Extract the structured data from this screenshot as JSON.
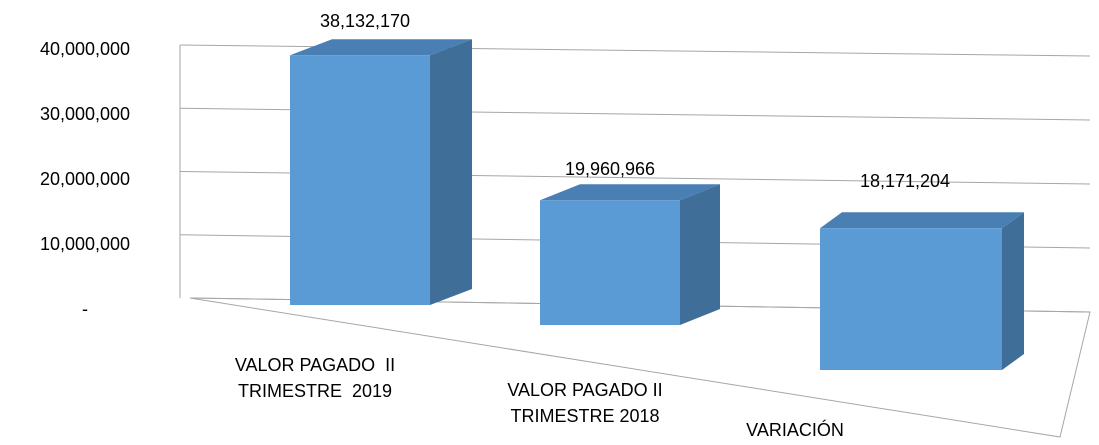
{
  "chart_data": {
    "type": "bar",
    "categories": [
      "VALOR PAGADO  II TRIMESTRE  2019",
      "VALOR PAGADO II TRIMESTRE 2018",
      "VARIACIÓN"
    ],
    "values": [
      38132170,
      19960966,
      18171204
    ],
    "value_labels": [
      "38,132,170",
      "19,960,966",
      "18,171,204"
    ],
    "color": "#5b9bd5",
    "ylim": [
      0,
      40000000
    ],
    "yticks": [
      {
        "value": 0,
        "label": "-"
      },
      {
        "value": 10000000,
        "label": "10,000,000"
      },
      {
        "value": 20000000,
        "label": "20,000,000"
      },
      {
        "value": 30000000,
        "label": "30,000,000"
      },
      {
        "value": 40000000,
        "label": "40,000,000"
      }
    ],
    "grid": true
  }
}
